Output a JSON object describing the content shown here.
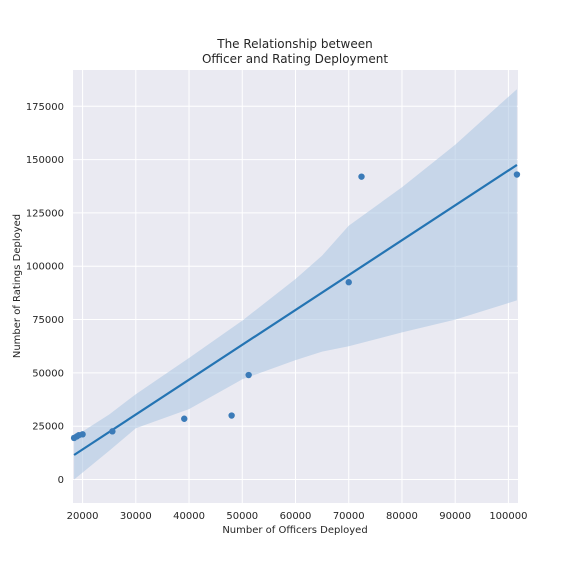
{
  "chart_data": {
    "type": "scatter",
    "title": [
      "The Relationship between",
      "Officer and Rating Deployment"
    ],
    "xlabel": "Number of Officers Deployed",
    "ylabel": "Number of Ratings Deployed",
    "xlim": [
      18200,
      101800
    ],
    "ylim": [
      -11000,
      192000
    ],
    "xticks": [
      20000,
      30000,
      40000,
      50000,
      60000,
      70000,
      80000,
      90000,
      100000
    ],
    "yticks": [
      0,
      25000,
      50000,
      75000,
      100000,
      125000,
      150000,
      175000
    ],
    "grid": true,
    "points": [
      {
        "x": 18400,
        "y": 19500
      },
      {
        "x": 18900,
        "y": 20200
      },
      {
        "x": 19300,
        "y": 20800
      },
      {
        "x": 20000,
        "y": 21200
      },
      {
        "x": 25600,
        "y": 22600
      },
      {
        "x": 39100,
        "y": 28500
      },
      {
        "x": 48000,
        "y": 30000
      },
      {
        "x": 51200,
        "y": 49000
      },
      {
        "x": 70000,
        "y": 92500
      },
      {
        "x": 72400,
        "y": 142000
      },
      {
        "x": 101600,
        "y": 143000
      }
    ],
    "regression": {
      "x": [
        18400,
        101600
      ],
      "y": [
        11500,
        147500
      ]
    },
    "confidence_band": {
      "x": [
        18400,
        25000,
        30000,
        40000,
        50000,
        60000,
        65000,
        70000,
        80000,
        90000,
        101600
      ],
      "upper": [
        20000,
        30500,
        40000,
        57000,
        74500,
        94000,
        105000,
        119000,
        137000,
        157000,
        183000
      ],
      "lower": [
        0,
        13500,
        24000,
        33000,
        47000,
        56000,
        60000,
        62500,
        69000,
        75000,
        84000
      ]
    },
    "colors": {
      "point": "#3b7bb8",
      "line": "#2474b3",
      "band": "#a9c4e2",
      "axes_bg": "#eaeaf2",
      "grid": "#ffffff"
    }
  }
}
